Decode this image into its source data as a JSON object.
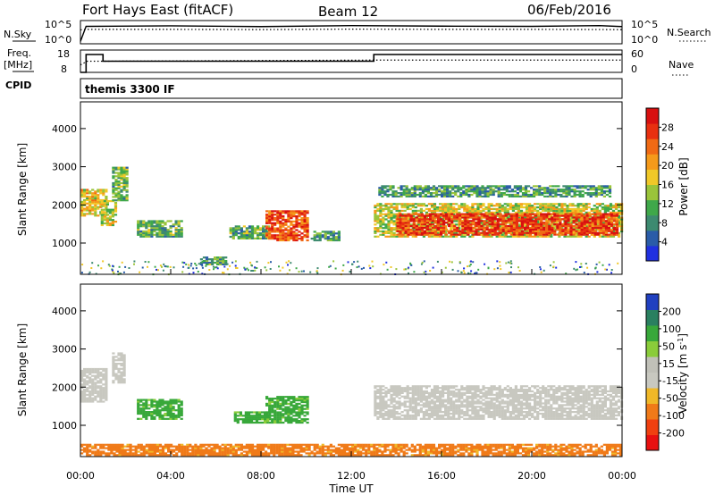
{
  "header": {
    "station": "Fort Hays East (fitACF)",
    "beam": "Beam 12",
    "date": "06/Feb/2016"
  },
  "colors": {
    "power_scale": [
      "#2030e0",
      "#2a5ca8",
      "#3d8a70",
      "#3fa84a",
      "#9ac43a",
      "#f0c828",
      "#f59a1a",
      "#f06a14",
      "#e83010",
      "#d81010"
    ],
    "velocity_scale": [
      "#e81010",
      "#f04010",
      "#f07a18",
      "#f0b828",
      "#c8c8c0",
      "#c0c0b8",
      "#8acc3a",
      "#38a83a",
      "#2a8060",
      "#2040c0"
    ],
    "no_data": "#ffffff"
  },
  "chart_data": [
    {
      "type": "line",
      "panel": "N.Sky / N.Search",
      "left_label": "N.Sky",
      "right_label": "N.Search",
      "left_ticks": [
        "10^5",
        "10^0"
      ],
      "right_ticks": [
        "10^5",
        "10^0"
      ],
      "series": [
        {
          "name": "N.Sky",
          "style": "solid",
          "x": [
            0,
            0.25,
            0.3,
            4,
            8,
            12,
            16,
            20,
            23,
            24
          ],
          "values": [
            0.1,
            0.75,
            0.75,
            0.77,
            0.74,
            0.78,
            0.76,
            0.75,
            0.78,
            0.74
          ]
        },
        {
          "name": "N.Search",
          "style": "dotted",
          "x": [
            0,
            0.3,
            4,
            8,
            12,
            16,
            20,
            24
          ],
          "values": [
            0.6,
            0.62,
            0.62,
            0.61,
            0.63,
            0.62,
            0.62,
            0.61
          ]
        }
      ]
    },
    {
      "type": "line",
      "panel": "Freq / Nave",
      "left_label": "Freq. [MHz]",
      "right_label": "Nave",
      "left_ticks": [
        "18",
        "8"
      ],
      "right_ticks": [
        "60",
        "0"
      ],
      "series": [
        {
          "name": "Freq. [MHz]",
          "style": "solid",
          "x": [
            0,
            0.25,
            0.25,
            1.0,
            1.0,
            13.0,
            13.0,
            24
          ],
          "values": [
            8,
            8,
            16,
            16,
            13,
            13,
            16,
            16
          ]
        },
        {
          "name": "Nave",
          "style": "dotted",
          "x": [
            0,
            0.3,
            1.0,
            13.0,
            24
          ],
          "values": [
            20,
            30,
            30,
            33,
            33
          ]
        }
      ]
    },
    {
      "type": "heatmap",
      "panel": "Power",
      "cpid_label": "CPID",
      "cpid_text": "themis 3300 IF",
      "ylabel": "Slant Range [km]",
      "yticks": [
        1000,
        2000,
        3000,
        4000
      ],
      "ylim": [
        180,
        4700
      ],
      "colorbar_label": "Power [dB]",
      "colorbar_ticks": [
        4,
        8,
        12,
        16,
        20,
        24,
        28
      ],
      "colorbar_range": [
        0,
        32
      ],
      "regions": [
        {
          "t0": 0.0,
          "t1": 1.2,
          "r0": 1700,
          "r1": 2400,
          "level": 0.55
        },
        {
          "t0": 0.9,
          "t1": 1.6,
          "r0": 1450,
          "r1": 2100,
          "level": 0.5
        },
        {
          "t0": 1.4,
          "t1": 2.1,
          "r0": 2100,
          "r1": 3000,
          "level": 0.35
        },
        {
          "t0": 2.5,
          "t1": 4.5,
          "r0": 1150,
          "r1": 1600,
          "level": 0.35
        },
        {
          "t0": 5.3,
          "t1": 6.4,
          "r0": 420,
          "r1": 640,
          "level": 0.3
        },
        {
          "t0": 6.6,
          "t1": 8.3,
          "r0": 1100,
          "r1": 1450,
          "level": 0.35
        },
        {
          "t0": 8.2,
          "t1": 10.0,
          "r0": 1050,
          "r1": 1850,
          "level": 0.8
        },
        {
          "t0": 10.2,
          "t1": 11.4,
          "r0": 1050,
          "r1": 1300,
          "level": 0.3
        },
        {
          "t0": 13.0,
          "t1": 24.0,
          "r0": 1150,
          "r1": 2050,
          "level": 0.5
        },
        {
          "t0": 14.0,
          "t1": 23.8,
          "r0": 1200,
          "r1": 1750,
          "level": 0.85
        },
        {
          "t0": 13.2,
          "t1": 23.5,
          "r0": 2200,
          "r1": 2500,
          "level": 0.3
        }
      ]
    },
    {
      "type": "heatmap",
      "panel": "Velocity",
      "ylabel": "Slant Range [km]",
      "yticks": [
        1000,
        2000,
        3000,
        4000
      ],
      "ylim": [
        180,
        4700
      ],
      "colorbar_label": "Velocity [m s^-1]",
      "colorbar_ticks": [
        "200",
        "100",
        "50",
        "15",
        "-15",
        "-50",
        "-100",
        "-200"
      ],
      "xlabel": "Time UT",
      "xticks": [
        "00:00",
        "04:00",
        "08:00",
        "12:00",
        "16:00",
        "20:00",
        "00:00"
      ],
      "xlim": [
        0,
        24
      ],
      "regions": [
        {
          "t0": 0.0,
          "t1": 1.2,
          "r0": 1600,
          "r1": 2500,
          "velocity": 0
        },
        {
          "t0": 1.4,
          "t1": 2.0,
          "r0": 2100,
          "r1": 2900,
          "velocity": 0
        },
        {
          "t0": 2.5,
          "t1": 4.5,
          "r0": 1150,
          "r1": 1650,
          "velocity": 40
        },
        {
          "t0": 8.2,
          "t1": 10.0,
          "r0": 1050,
          "r1": 1750,
          "velocity": 40
        },
        {
          "t0": 6.8,
          "t1": 8.3,
          "r0": 1050,
          "r1": 1350,
          "velocity": 40
        },
        {
          "t0": 13.0,
          "t1": 24.0,
          "r0": 1150,
          "r1": 2050,
          "velocity": 0
        },
        {
          "t0": 0.0,
          "t1": 24.0,
          "r0": 200,
          "r1": 500,
          "velocity": -60
        }
      ]
    }
  ]
}
